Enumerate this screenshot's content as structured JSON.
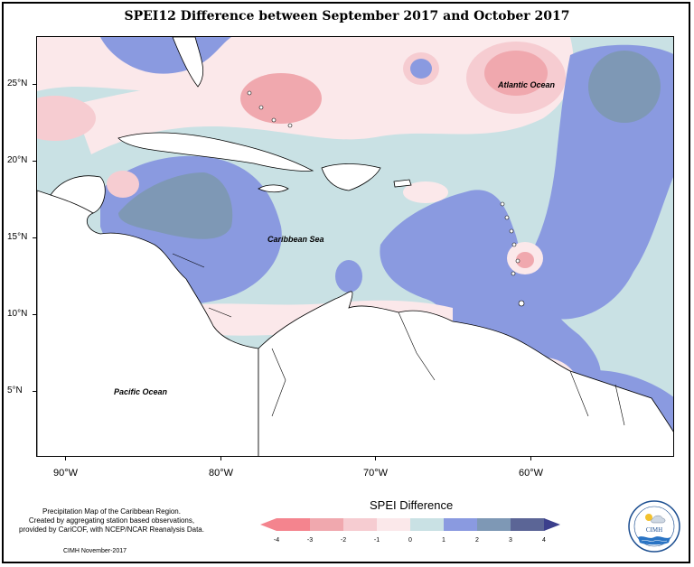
{
  "title": "SPEI12 Difference between September 2017 and October 2017",
  "map": {
    "lat_labels": [
      "25°N",
      "20°N",
      "15°N",
      "10°N",
      "5°N"
    ],
    "lon_labels": [
      "90°W",
      "80°W",
      "70°W",
      "60°W"
    ],
    "places": {
      "atlantic": "Atlantic Ocean",
      "caribbean": "Caribbean Sea",
      "pacific": "Pacific Ocean"
    }
  },
  "legend": {
    "title": "SPEI Difference",
    "ticks": [
      "-4",
      "-3",
      "-2",
      "-1",
      "0",
      "1",
      "2",
      "3",
      "4"
    ],
    "colors": [
      "#f4848e",
      "#f0a8ae",
      "#f6ccd1",
      "#fbe8ea",
      "#c9e1e4",
      "#8a9ae0",
      "#7e98b5",
      "#5b6596",
      "#3b3f8c"
    ]
  },
  "credits": {
    "line1": "Precipitation Map of the Caribbean Region.",
    "line2": "Created by aggregating station based observations,",
    "line3": "provided by CariCOF, with NCEP/NCAR Reanalysis Data.",
    "footer": "CIMH November-2017"
  },
  "logo": {
    "text": "CIMH"
  }
}
